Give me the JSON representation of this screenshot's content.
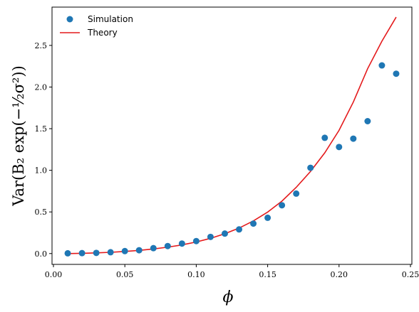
{
  "chart_data": {
    "type": "scatter",
    "xlabel": "ϕ",
    "ylabel": "Var(B₂ exp(−½σ²))",
    "xlim": [
      -0.001,
      0.251
    ],
    "ylim": [
      -0.13,
      2.96
    ],
    "xticks": [
      0.0,
      0.05,
      0.1,
      0.15,
      0.2,
      0.25
    ],
    "xtick_labels": [
      "0.00",
      "0.05",
      "0.10",
      "0.15",
      "0.20",
      "0.25"
    ],
    "yticks": [
      0.0,
      0.5,
      1.0,
      1.5,
      2.0,
      2.5
    ],
    "ytick_labels": [
      "0.0",
      "0.5",
      "1.0",
      "1.5",
      "2.0",
      "2.5"
    ],
    "grid": false,
    "legend_position": "top-left",
    "series": [
      {
        "name": "Simulation",
        "kind": "scatter",
        "color": "#1f77b4",
        "x": [
          0.01,
          0.02,
          0.03,
          0.04,
          0.05,
          0.06,
          0.07,
          0.08,
          0.09,
          0.1,
          0.11,
          0.12,
          0.13,
          0.14,
          0.15,
          0.16,
          0.17,
          0.18,
          0.19,
          0.2,
          0.21,
          0.22,
          0.23,
          0.24
        ],
        "y": [
          0.003,
          0.005,
          0.008,
          0.016,
          0.03,
          0.04,
          0.065,
          0.09,
          0.12,
          0.15,
          0.2,
          0.24,
          0.29,
          0.36,
          0.43,
          0.58,
          0.72,
          1.03,
          1.39,
          1.28,
          1.38,
          1.59,
          2.26,
          2.16
        ]
      },
      {
        "name": "Theory",
        "kind": "line",
        "color": "#e41a1c",
        "x": [
          0.01,
          0.02,
          0.03,
          0.04,
          0.05,
          0.06,
          0.07,
          0.08,
          0.09,
          0.1,
          0.11,
          0.12,
          0.13,
          0.14,
          0.15,
          0.16,
          0.17,
          0.18,
          0.19,
          0.2,
          0.21,
          0.22,
          0.23,
          0.24
        ],
        "y": [
          0.0,
          0.003,
          0.008,
          0.015,
          0.025,
          0.038,
          0.055,
          0.077,
          0.104,
          0.139,
          0.183,
          0.238,
          0.306,
          0.392,
          0.498,
          0.63,
          0.795,
          0.986,
          1.21,
          1.48,
          1.82,
          2.22,
          2.55,
          2.84
        ]
      }
    ]
  }
}
